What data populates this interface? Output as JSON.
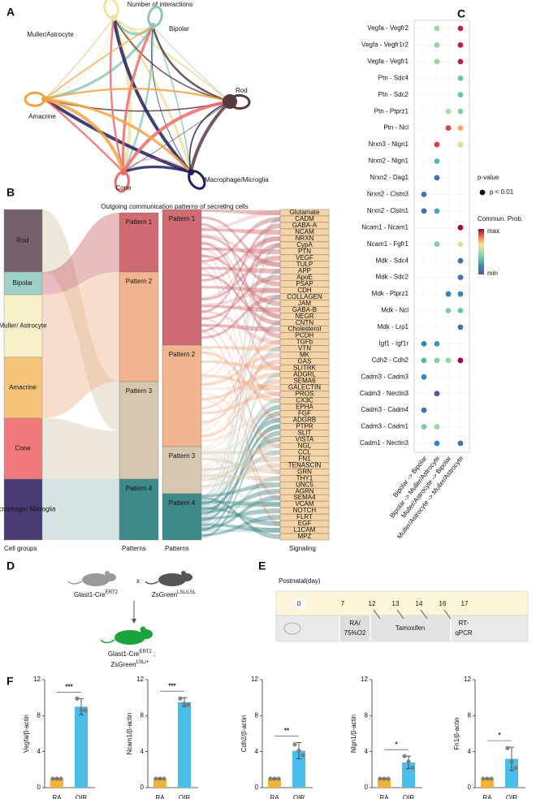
{
  "panel_labels": [
    "A",
    "B",
    "C",
    "D",
    "E",
    "F"
  ],
  "network": {
    "title": "Number of interactions",
    "nodes": [
      {
        "label": "Muller/Astrocyte",
        "color": "#efe3a0"
      },
      {
        "label": "Bipolar",
        "color": "#8cc9b7"
      },
      {
        "label": "Rod",
        "color": "#5a3a3f"
      },
      {
        "label": "Macrophage/Microglia",
        "color": "#1f1f5e"
      },
      {
        "label": "Cone",
        "color": "#f06a6a"
      },
      {
        "label": "Amacrine",
        "color": "#f2a444"
      }
    ]
  },
  "sankey": {
    "title": "Outgoing communication patterns of secreting cells",
    "cell_groups": [
      {
        "label": "Rod",
        "color": "#74616b"
      },
      {
        "label": "Bipolar",
        "color": "#9fd0c8"
      },
      {
        "label": "Muller/ Astrocyte",
        "color": "#f7f0c8"
      },
      {
        "label": "Amacrine",
        "color": "#f5c57a"
      },
      {
        "label": "Cone",
        "color": "#f07a7a"
      },
      {
        "label": "Macrophage/ Microglia",
        "color": "#4a3a75"
      }
    ],
    "patterns": [
      {
        "label": "Pattern 1",
        "color": "#cf6b72"
      },
      {
        "label": "Pattern 2",
        "color": "#f0b48e"
      },
      {
        "label": "Pattern 3",
        "color": "#d6c8b0"
      },
      {
        "label": "Pattern 4",
        "color": "#3e8a8a"
      }
    ],
    "signaling": [
      "Glutamate",
      "CADM",
      "GABA-A",
      "NCAM",
      "NRXN",
      "CypA",
      "PTN",
      "VEGF",
      "TULP",
      "APP",
      "ApoE",
      "PSAP",
      "CDH",
      "COLLAGEN",
      "JAM",
      "GABA-B",
      "NEGR",
      "CNTN",
      "Cholesterol",
      "PCDH",
      "TGFb",
      "VTN",
      "MK",
      "GAS",
      "SLITRK",
      "ADGRL",
      "SEMA6",
      "GALECTIN",
      "PROS",
      "CX3C",
      "EPHA",
      "FGF",
      "ADGRB",
      "PTPR",
      "SLIT",
      "VISTA",
      "NGL",
      "CCL",
      "FN1",
      "TENASCIN",
      "GRN",
      "THY1",
      "UNC5",
      "AGRN",
      "SEMA4",
      "VCAM",
      "NOTCH",
      "FLRT",
      "EGF",
      "L1CAM",
      "MPZ"
    ],
    "signaling_color": "#f7d4a6",
    "axis_labels": [
      "Cell groups",
      "Patterns",
      "Patterns",
      "Signaling"
    ]
  },
  "chart_data": [
    {
      "type": "dot",
      "categories": [
        "Vegfa - Vegfr2",
        "Vegfa - Vegfr1r2",
        "Vegfa - Vegfr1",
        "Ptn - Sdc4",
        "Ptn - Sdc2",
        "Ptn - Ptprz1",
        "Ptn - Ncl",
        "Nrxn3 - Nlgn1",
        "Nrxn2 - Nlgn1",
        "Nrxn2 - Dag1",
        "Nrxn2 - Clstn3",
        "Nrxn2 - Clstn1",
        "Ncam1 - Ncam1",
        "Ncam1 - Fgfr1",
        "Mdk - Sdc4",
        "Mdk - Sdc2",
        "Mdk - Ptprz1",
        "Mdk - Ncl",
        "Mdk - Lrp1",
        "Igf1 - Igf1r",
        "Cdh2 - Cdh2",
        "Cadm3 - Cadm3",
        "Cadm3 - Nectin3",
        "Cadm3 - Cadm4",
        "Cadm3 - Cadm1",
        "Cadm1 - Nectin3"
      ],
      "series": [
        {
          "name": "Bipolar -> Bipolar",
          "values": [
            null,
            null,
            null,
            null,
            null,
            null,
            null,
            null,
            null,
            null,
            0.1,
            0.1,
            null,
            null,
            null,
            null,
            null,
            null,
            null,
            0.15,
            0.3,
            0.15,
            null,
            0.1,
            0.4,
            null
          ]
        },
        {
          "name": "Bipolar -> Muller/Astrocyte",
          "values": [
            0.45,
            0.45,
            0.45,
            null,
            null,
            null,
            null,
            0.9,
            0.3,
            0.1,
            null,
            0.25,
            null,
            0.4,
            null,
            null,
            null,
            null,
            null,
            0.2,
            0.4,
            null,
            0.0,
            null,
            0.45,
            0.15
          ]
        },
        {
          "name": "Muller/Astrocyte -> Bipolar",
          "values": [
            null,
            null,
            null,
            null,
            null,
            0.5,
            0.9,
            null,
            null,
            null,
            null,
            null,
            null,
            null,
            null,
            null,
            0.15,
            0.4,
            null,
            null,
            0.45,
            null,
            null,
            null,
            null,
            null
          ]
        },
        {
          "name": "Muller/Astrocyte -> Muller/Astrocyte",
          "values": [
            0.95,
            0.95,
            0.95,
            0.35,
            0.35,
            0.4,
            0.75,
            0.6,
            null,
            null,
            null,
            null,
            1.0,
            0.6,
            0.1,
            0.1,
            0.15,
            0.35,
            0.1,
            null,
            1.0,
            null,
            null,
            null,
            null,
            0.1
          ]
        }
      ],
      "clim": [
        0,
        1
      ],
      "colormap": [
        "#5e4fa2",
        "#3288bd",
        "#66c2a5",
        "#abdda4",
        "#fee08b",
        "#f46d43",
        "#9e0142"
      ],
      "legend": {
        "size_title": "p-value",
        "size_label": "p < 0.01",
        "color_title": "Commun. Prob.",
        "color_max": "max",
        "color_min": "min"
      }
    },
    {
      "type": "bar",
      "ylabel": "Vegfa/β-actin",
      "categories": [
        "RA",
        "OIR"
      ],
      "values": [
        1,
        9.0
      ],
      "errors": [
        0.05,
        0.9
      ],
      "points": [
        [
          1,
          1,
          1
        ],
        [
          9.9,
          8.6,
          8.6
        ]
      ],
      "colors": [
        "#f5b335",
        "#4bbdeb"
      ],
      "annotation": "***",
      "ylim": [
        0,
        12
      ],
      "yticks": [
        0,
        4,
        8,
        12
      ]
    },
    {
      "type": "bar",
      "ylabel": "Ncam1/β-actin",
      "categories": [
        "RA",
        "OIR"
      ],
      "values": [
        1,
        9.5
      ],
      "errors": [
        0.05,
        0.5
      ],
      "points": [
        [
          1,
          1,
          1
        ],
        [
          9.9,
          9.3,
          9.2
        ]
      ],
      "colors": [
        "#f5b335",
        "#4bbdeb"
      ],
      "annotation": "***",
      "ylim": [
        0,
        12
      ],
      "yticks": [
        0,
        4,
        8,
        12
      ]
    },
    {
      "type": "bar",
      "ylabel": "Cdh2/β-actin",
      "categories": [
        "RA",
        "OIR"
      ],
      "values": [
        1,
        4.1
      ],
      "errors": [
        0.05,
        0.9
      ],
      "points": [
        [
          1,
          1,
          1
        ],
        [
          4.8,
          4.1,
          3.6
        ]
      ],
      "colors": [
        "#f5b335",
        "#4bbdeb"
      ],
      "annotation": "**",
      "ylim": [
        0,
        12
      ],
      "yticks": [
        0,
        4,
        8,
        12
      ]
    },
    {
      "type": "bar",
      "ylabel": "Nlgn1/β-actin",
      "categories": [
        "RA",
        "OIR"
      ],
      "values": [
        1,
        2.8
      ],
      "errors": [
        0.05,
        0.7
      ],
      "points": [
        [
          1,
          1,
          1
        ],
        [
          3.5,
          2.9,
          2.2
        ]
      ],
      "colors": [
        "#f5b335",
        "#4bbdeb"
      ],
      "annotation": "*",
      "ylim": [
        0,
        12
      ],
      "yticks": [
        0,
        4,
        8,
        12
      ]
    },
    {
      "type": "bar",
      "ylabel": "Fn1/β-actin",
      "categories": [
        "RA",
        "OIR"
      ],
      "values": [
        1,
        3.2
      ],
      "errors": [
        0.05,
        1.3
      ],
      "points": [
        [
          1,
          1,
          1
        ],
        [
          4.4,
          2.9,
          2.2
        ]
      ],
      "colors": [
        "#f5b335",
        "#4bbdeb"
      ],
      "annotation": "*",
      "ylim": [
        0,
        12
      ],
      "yticks": [
        0,
        4,
        8,
        12
      ]
    }
  ],
  "breeding": {
    "parent1": {
      "base": "Glast1-Cre",
      "sup": "ERT2"
    },
    "cross": "x",
    "parent2": {
      "base": "ZsGreen",
      "sup": "LSL/LSL"
    },
    "offspring1": {
      "base": "Glast1-Cre",
      "sup": "ERT2",
      "tail": " ;"
    },
    "offspring2": {
      "base": "ZsGreen",
      "sup": "LSL/+"
    }
  },
  "timeline": {
    "title": "Postnatal(day)",
    "days": [
      "0",
      "7",
      "12",
      "13",
      "14",
      "16",
      "17"
    ],
    "stages": [
      [
        "RA/",
        "75%O2"
      ],
      [
        "Tamoxifen"
      ],
      [
        "RT-",
        "qPCR"
      ]
    ]
  }
}
